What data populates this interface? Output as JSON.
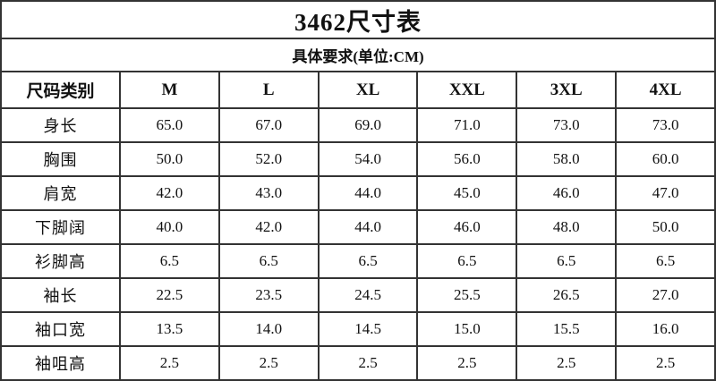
{
  "title": "3462尺寸表",
  "subtitle": "具体要求(单位:CM)",
  "table": {
    "header": [
      "尺码类别",
      "M",
      "L",
      "XL",
      "XXL",
      "3XL",
      "4XL"
    ],
    "rows": [
      {
        "label": "身长",
        "values": [
          "65.0",
          "67.0",
          "69.0",
          "71.0",
          "73.0",
          "73.0"
        ]
      },
      {
        "label": "胸围",
        "values": [
          "50.0",
          "52.0",
          "54.0",
          "56.0",
          "58.0",
          "60.0"
        ]
      },
      {
        "label": "肩宽",
        "values": [
          "42.0",
          "43.0",
          "44.0",
          "45.0",
          "46.0",
          "47.0"
        ]
      },
      {
        "label": "下脚阔",
        "values": [
          "40.0",
          "42.0",
          "44.0",
          "46.0",
          "48.0",
          "50.0"
        ]
      },
      {
        "label": "衫脚高",
        "values": [
          "6.5",
          "6.5",
          "6.5",
          "6.5",
          "6.5",
          "6.5"
        ]
      },
      {
        "label": "袖长",
        "values": [
          "22.5",
          "23.5",
          "24.5",
          "25.5",
          "26.5",
          "27.0"
        ]
      },
      {
        "label": "袖口宽",
        "values": [
          "13.5",
          "14.0",
          "14.5",
          "15.0",
          "15.5",
          "16.0"
        ]
      },
      {
        "label": "袖咀高",
        "values": [
          "2.5",
          "2.5",
          "2.5",
          "2.5",
          "2.5",
          "2.5"
        ]
      }
    ]
  },
  "colors": {
    "background": "#ffffff",
    "border": "#333333",
    "text": "#111111"
  }
}
